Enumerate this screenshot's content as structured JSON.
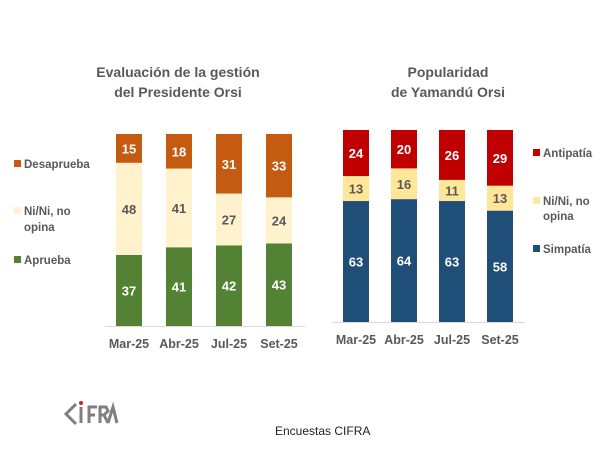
{
  "chart_data": [
    {
      "type": "bar",
      "stacked": true,
      "title": [
        "Evaluación de la gestión",
        "del Presidente Orsi"
      ],
      "categories": [
        "Mar-25",
        "Abr-25",
        "Jul-25",
        "Set-25"
      ],
      "ylim": [
        0,
        100
      ],
      "grid": false,
      "legend": "left",
      "series": [
        {
          "name": "Aprueba",
          "values": [
            37,
            41,
            42,
            43
          ],
          "color": "#548235"
        },
        {
          "name": "Ni/Ni, no opina",
          "values": [
            48,
            41,
            27,
            24
          ],
          "color": "#FFF2CC"
        },
        {
          "name": "Desaprueba",
          "values": [
            15,
            18,
            31,
            33
          ],
          "color": "#C55A11"
        }
      ]
    },
    {
      "type": "bar",
      "stacked": true,
      "title": [
        "Popularidad",
        "de Yamandú Orsi"
      ],
      "categories": [
        "Mar-25",
        "Abr-25",
        "Jul-25",
        "Set-25"
      ],
      "ylim": [
        0,
        100
      ],
      "grid": false,
      "legend": "right",
      "series": [
        {
          "name": "Simpatía",
          "values": [
            63,
            64,
            63,
            58
          ],
          "color": "#1F4E79"
        },
        {
          "name": "Ni/Ni, no opina",
          "values": [
            13,
            16,
            11,
            13
          ],
          "color": "#FFE699"
        },
        {
          "name": "Antipatía",
          "values": [
            24,
            20,
            26,
            29
          ],
          "color": "#C00000"
        }
      ]
    }
  ],
  "logo": "CIFRA",
  "footer": "Encuestas CIFRA"
}
